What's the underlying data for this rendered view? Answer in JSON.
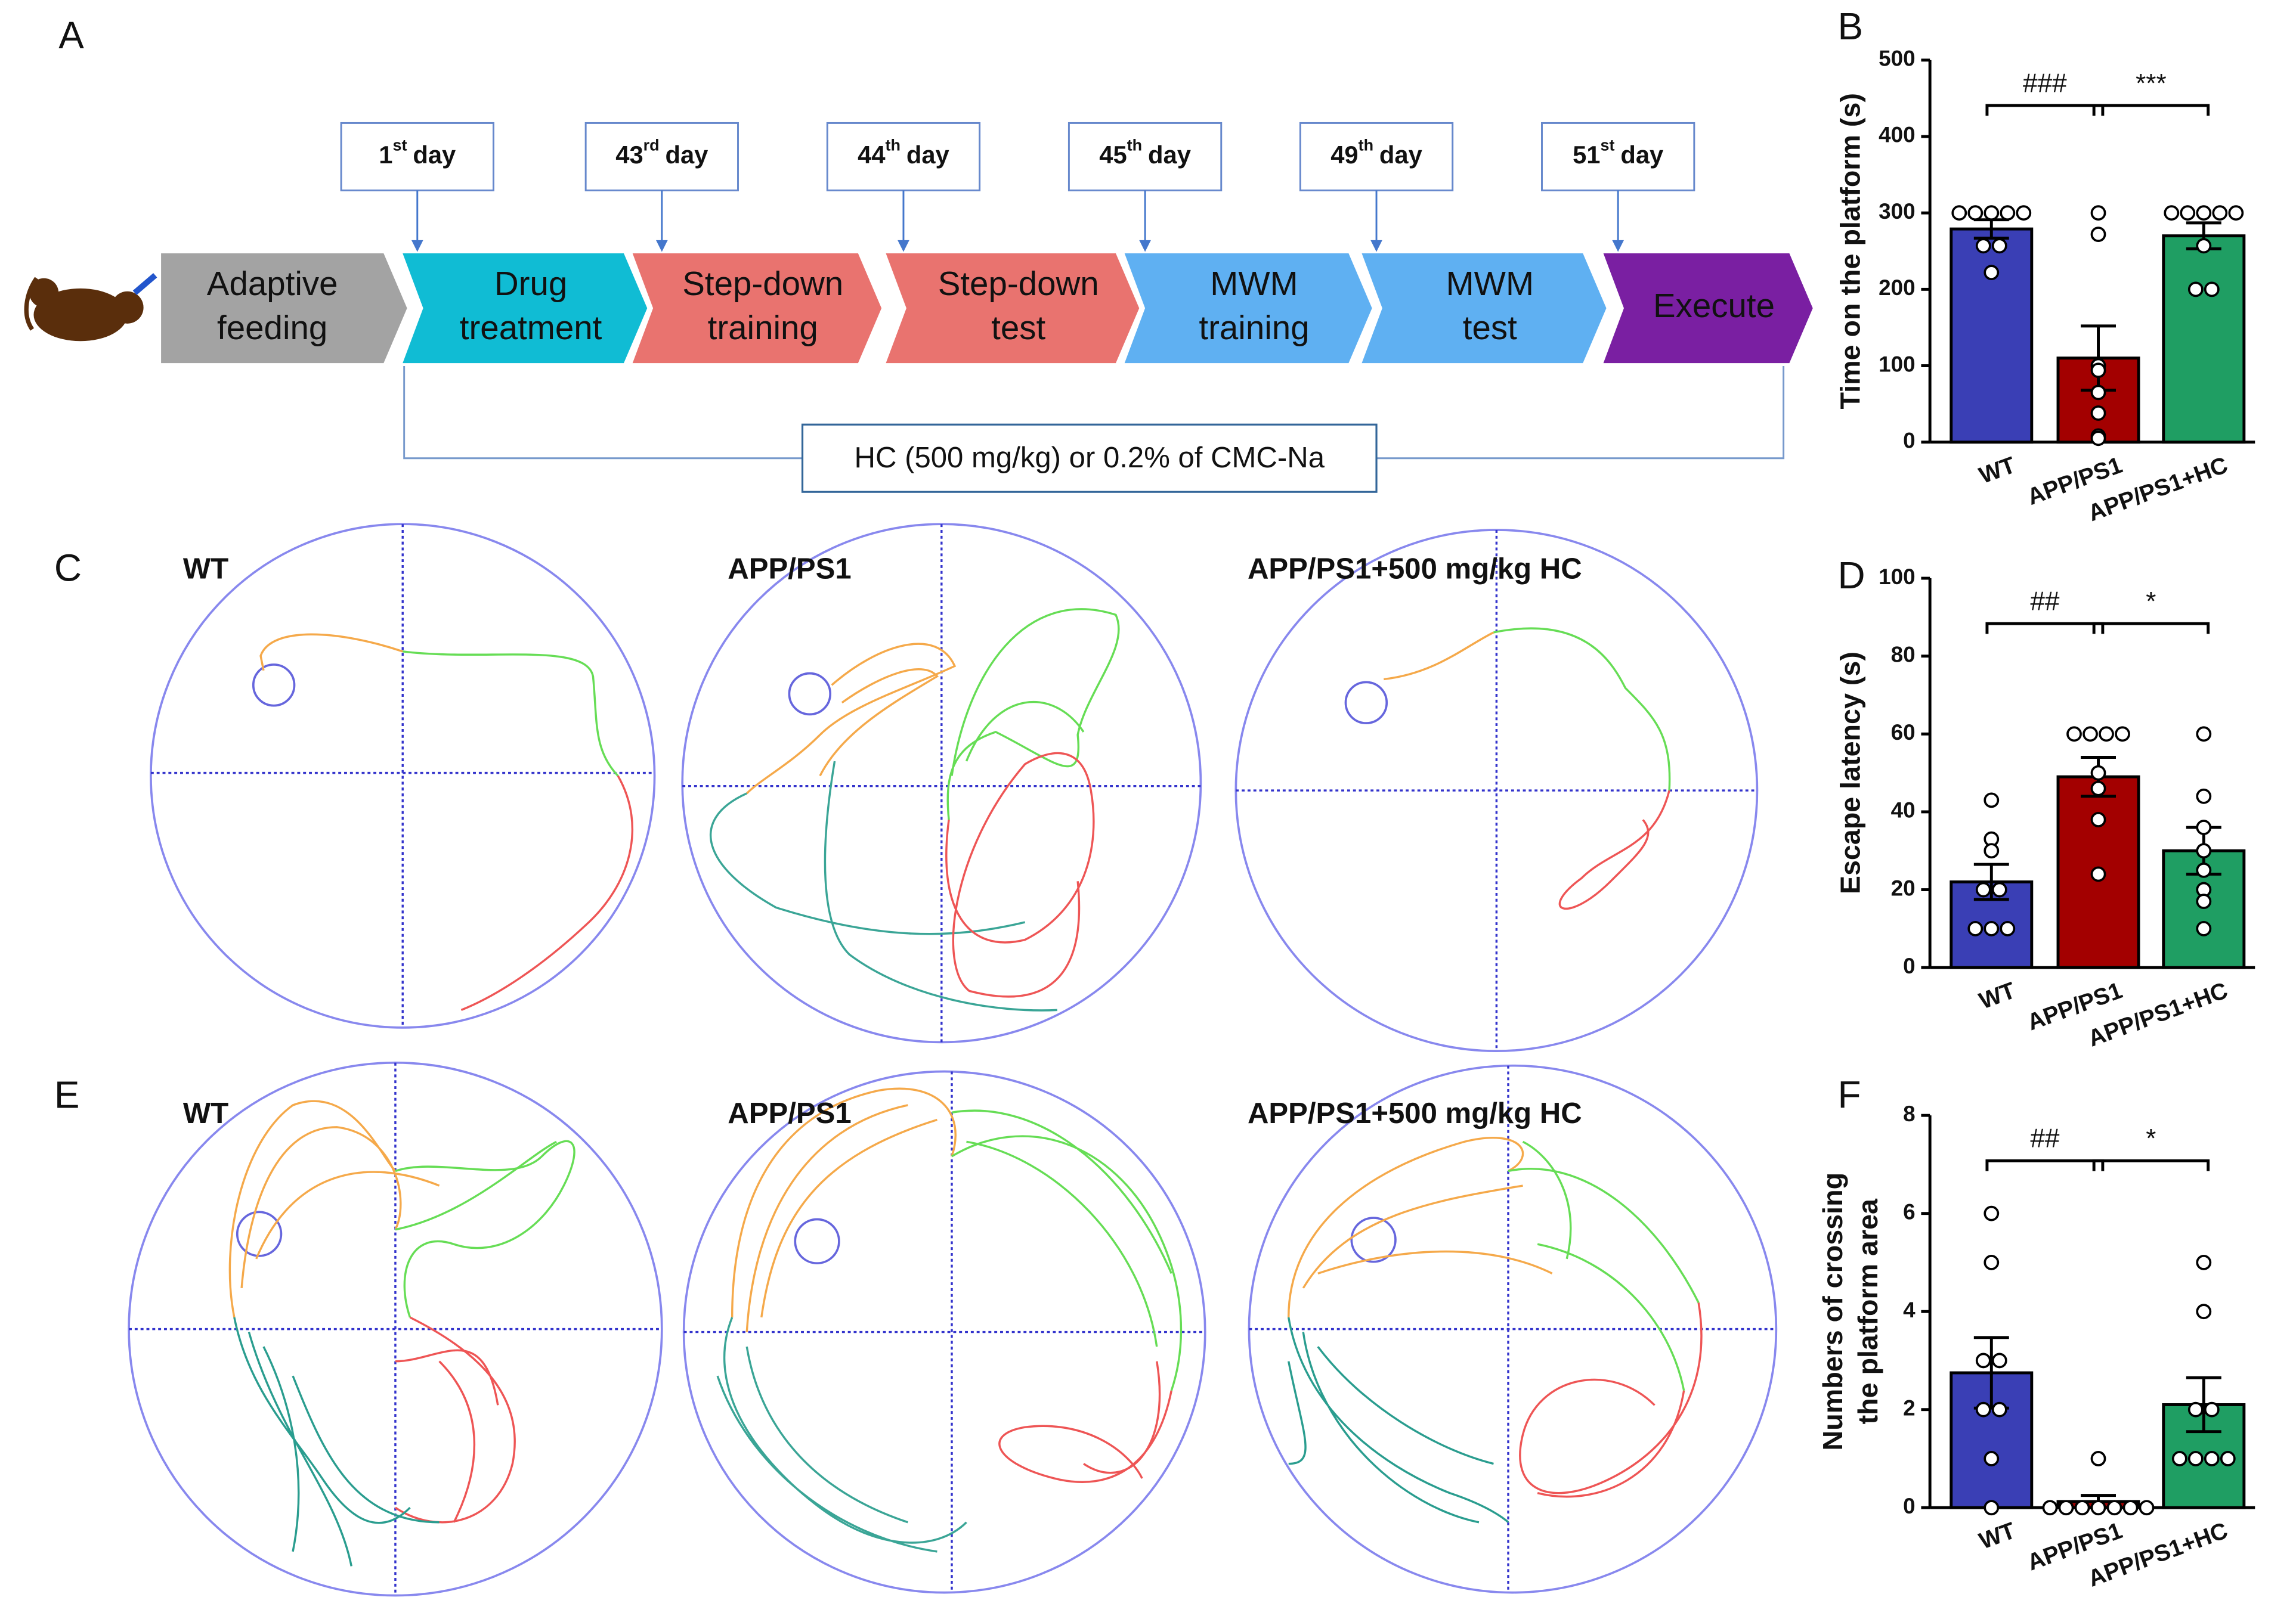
{
  "panel_labels": [
    "A",
    "B",
    "C",
    "D",
    "E",
    "F"
  ],
  "timeline": {
    "steps": [
      [
        "Adaptive",
        "feeding"
      ],
      [
        "Drug",
        "treatment"
      ],
      [
        "Step-down",
        "training"
      ],
      [
        "Step-down",
        "test"
      ],
      [
        "MWM",
        "training"
      ],
      [
        "MWM",
        "test"
      ],
      [
        "Execute"
      ]
    ],
    "days": [
      {
        "num": "1",
        "sup": "st",
        "text": "day"
      },
      {
        "num": "43",
        "sup": "rd",
        "text": "day"
      },
      {
        "num": "44",
        "sup": "th",
        "text": "day"
      },
      {
        "num": "45",
        "sup": "th",
        "text": "day"
      },
      {
        "num": "49",
        "sup": "th",
        "text": "day"
      },
      {
        "num": "51",
        "sup": "st",
        "text": "day"
      }
    ],
    "note": "HC (500 mg/kg) or 0.2% of CMC-Na"
  },
  "tracks": {
    "row_C": [
      "WT",
      "APP/PS1",
      "APP/PS1+500 mg/kg HC"
    ],
    "row_E": [
      "WT",
      "APP/PS1",
      "APP/PS1+500 mg/kg HC"
    ]
  },
  "chart_data": [
    {
      "type": "bar",
      "ylabel": [
        "Time on the platform (s)"
      ],
      "categories": [
        "WT",
        "APP/PS1",
        "APP/PS1+HC"
      ],
      "values": [
        279,
        110,
        270
      ],
      "errors": [
        12,
        42,
        17
      ],
      "points": [
        [
          300,
          300,
          300,
          300,
          300,
          257,
          257,
          222
        ],
        [
          300,
          272,
          100,
          94,
          65,
          38,
          8,
          5
        ],
        [
          300,
          300,
          300,
          300,
          300,
          257,
          200,
          200
        ]
      ],
      "colors": [
        "#3a3fb5",
        "#a30000",
        "#1f9e63"
      ],
      "ylim": [
        0,
        500
      ],
      "yticks": [
        0,
        100,
        200,
        300,
        400,
        500
      ],
      "annotations": [
        "###",
        "***"
      ]
    },
    {
      "type": "bar",
      "ylabel": [
        "Escape latency (s)"
      ],
      "categories": [
        "WT",
        "APP/PS1",
        "APP/PS1+HC"
      ],
      "values": [
        22,
        49,
        30
      ],
      "errors": [
        4.5,
        5,
        6
      ],
      "points": [
        [
          43,
          33,
          30,
          20,
          20,
          10,
          10,
          10
        ],
        [
          60,
          60,
          60,
          60,
          50,
          46,
          38,
          24
        ],
        [
          60,
          44,
          36,
          30,
          25,
          20,
          17,
          10
        ]
      ],
      "colors": [
        "#3a3fb5",
        "#a30000",
        "#1f9e63"
      ],
      "ylim": [
        0,
        100
      ],
      "yticks": [
        0,
        20,
        40,
        60,
        80,
        100
      ],
      "annotations": [
        "##",
        "*"
      ]
    },
    {
      "type": "bar",
      "ylabel": [
        "Numbers of crossing",
        "the platform area"
      ],
      "categories": [
        "WT",
        "APP/PS1",
        "APP/PS1+HC"
      ],
      "values": [
        2.75,
        0.125,
        2.1
      ],
      "errors": [
        0.72,
        0.125,
        0.55
      ],
      "points": [
        [
          6,
          5,
          3,
          3,
          2,
          2,
          1,
          0
        ],
        [
          1,
          0,
          0,
          0,
          0,
          0,
          0,
          0
        ],
        [
          5,
          4,
          2,
          2,
          1,
          1,
          1,
          1
        ]
      ],
      "colors": [
        "#3a3fb5",
        "#a30000",
        "#1f9e63"
      ],
      "ylim": [
        0,
        8
      ],
      "yticks": [
        0,
        2,
        4,
        6,
        8
      ],
      "annotations": [
        "##",
        "*"
      ]
    }
  ]
}
